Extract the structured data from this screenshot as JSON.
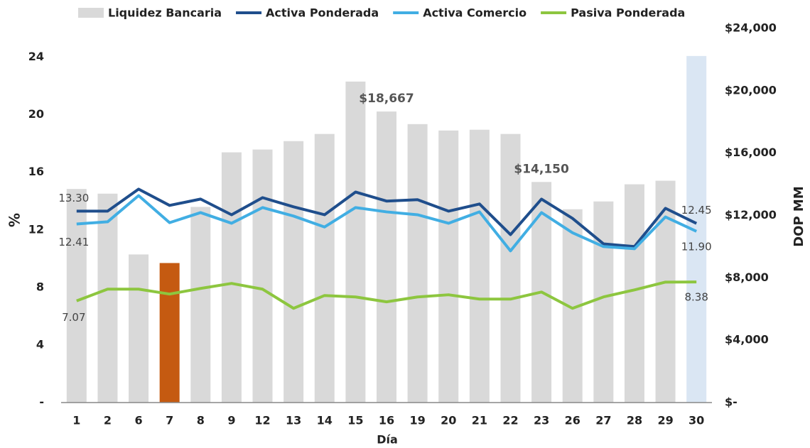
{
  "chart_data": {
    "type": "bar-line",
    "x_label": "Día",
    "y_label": "%",
    "y2_label": "DOP MM",
    "categories": [
      "1",
      "2",
      "6",
      "7",
      "8",
      "9",
      "12",
      "13",
      "14",
      "15",
      "16",
      "19",
      "20",
      "21",
      "22",
      "23",
      "26",
      "27",
      "28",
      "29",
      "30"
    ],
    "ylim": [
      0,
      26
    ],
    "yticks": [
      {
        "value": 0,
        "label": "-"
      },
      4,
      8,
      12,
      16,
      20,
      24
    ],
    "y2lim": [
      0,
      24000
    ],
    "y2ticks": [
      {
        "value": 0,
        "label": "$-"
      },
      {
        "value": 4000,
        "label": "$4,000"
      },
      {
        "value": 8000,
        "label": "$8,000"
      },
      {
        "value": 12000,
        "label": "$12,000"
      },
      {
        "value": 16000,
        "label": "$16,000"
      },
      {
        "value": 20000,
        "label": "$20,000"
      },
      {
        "value": 24000,
        "label": "$24,000"
      }
    ],
    "series": [
      {
        "name": "Liquidez Bancaria",
        "kind": "bar",
        "axis": "y2",
        "color": "#d9d9d9",
        "colors": [
          "#d9d9d9",
          "#d9d9d9",
          "#d9d9d9",
          "#c55a11",
          "#d9d9d9",
          "#d9d9d9",
          "#d9d9d9",
          "#d9d9d9",
          "#d9d9d9",
          "#d9d9d9",
          "#d9d9d9",
          "#d9d9d9",
          "#d9d9d9",
          "#d9d9d9",
          "#d9d9d9",
          "#d9d9d9",
          "#d9d9d9",
          "#d9d9d9",
          "#d9d9d9",
          "#d9d9d9",
          "#dae6f3"
        ],
        "values": [
          13700,
          13400,
          9500,
          8950,
          12550,
          16050,
          16230,
          16770,
          17230,
          20590,
          18667,
          17860,
          17450,
          17500,
          17230,
          14150,
          12400,
          12900,
          14000,
          14230,
          22230
        ],
        "value_labels": [
          null,
          null,
          null,
          null,
          null,
          null,
          null,
          null,
          null,
          null,
          "$18,667",
          null,
          null,
          null,
          null,
          "$14,150",
          null,
          null,
          null,
          null,
          null
        ]
      },
      {
        "name": "Activa Ponderada",
        "kind": "line",
        "color": "#1f4e8c",
        "values": [
          13.3,
          13.3,
          14.83,
          13.7,
          14.14,
          13.05,
          14.24,
          13.6,
          13.05,
          14.63,
          14.0,
          14.1,
          13.3,
          13.8,
          11.67,
          14.14,
          12.8,
          11.03,
          10.84,
          13.5,
          12.45
        ],
        "value_labels": [
          "13.30",
          null,
          null,
          null,
          null,
          null,
          null,
          null,
          null,
          null,
          null,
          null,
          null,
          null,
          null,
          null,
          null,
          null,
          null,
          null,
          "12.45"
        ]
      },
      {
        "name": "Activa Comercio",
        "kind": "line",
        "color": "#41aee3",
        "values": [
          12.41,
          12.56,
          14.38,
          12.5,
          13.2,
          12.46,
          13.55,
          12.96,
          12.2,
          13.55,
          13.25,
          13.05,
          12.46,
          13.25,
          10.54,
          13.2,
          11.8,
          10.84,
          10.69,
          12.9,
          11.9
        ],
        "value_labels": [
          "12.41",
          null,
          null,
          null,
          null,
          null,
          null,
          null,
          null,
          null,
          null,
          null,
          null,
          null,
          null,
          null,
          null,
          null,
          null,
          null,
          "11.90"
        ]
      },
      {
        "name": "Pasiva Ponderada",
        "kind": "line",
        "color": "#8dc63f",
        "values": [
          7.07,
          7.88,
          7.88,
          7.54,
          7.93,
          8.28,
          7.88,
          6.55,
          7.44,
          7.34,
          7.0,
          7.34,
          7.49,
          7.19,
          7.19,
          7.68,
          6.55,
          7.34,
          7.83,
          8.37,
          8.38
        ],
        "value_labels": [
          "7.07",
          null,
          null,
          null,
          null,
          null,
          null,
          null,
          null,
          null,
          null,
          null,
          null,
          null,
          null,
          null,
          null,
          null,
          null,
          null,
          "8.38"
        ]
      }
    ],
    "legend": "top"
  }
}
